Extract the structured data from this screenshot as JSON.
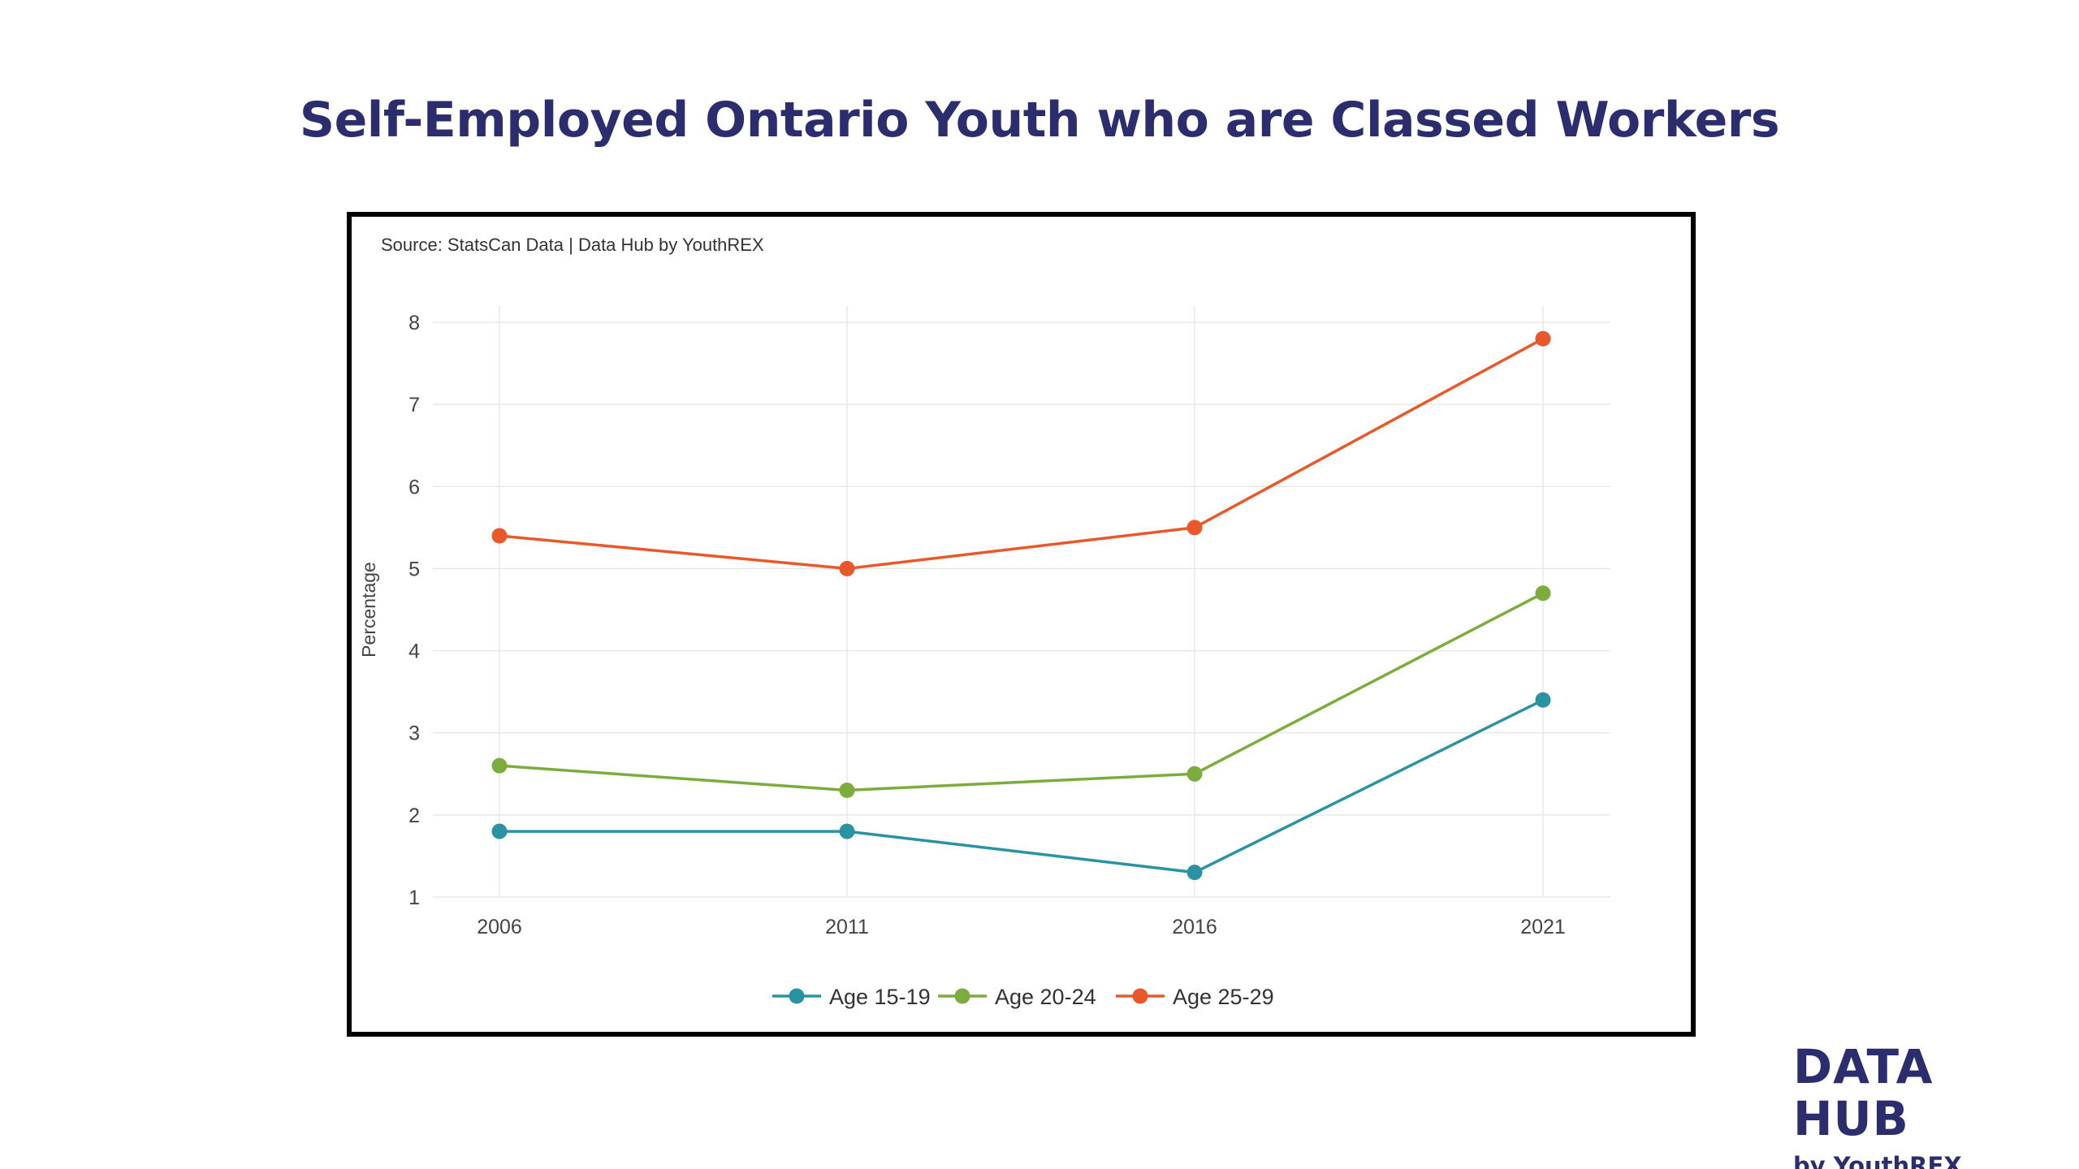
{
  "page": {
    "title": "Self-Employed Ontario Youth who are Classed Workers",
    "source_note": "Source: StatsCan Data | Data Hub by YouthREX"
  },
  "brand": {
    "name": "DATA HUB",
    "tagline": "by YouthREX"
  },
  "colors": {
    "title": "#2b2d6e",
    "frame": "#000000",
    "grid": "#e8e8e8"
  },
  "chart_data": {
    "type": "line",
    "title": "",
    "xlabel": "",
    "ylabel": "Percentage",
    "x": [
      "2006",
      "2011",
      "2016",
      "2021"
    ],
    "ylim": [
      1,
      8
    ],
    "yticks": [
      1,
      2,
      3,
      4,
      5,
      6,
      7,
      8
    ],
    "grid": true,
    "legend_position": "bottom",
    "series": [
      {
        "name": "Age 15-19",
        "color": "#2a93a3",
        "values": [
          1.8,
          1.8,
          1.3,
          3.4
        ]
      },
      {
        "name": "Age 20-24",
        "color": "#7dac3e",
        "values": [
          2.6,
          2.3,
          2.5,
          4.7
        ]
      },
      {
        "name": "Age 25-29",
        "color": "#e9582a",
        "values": [
          5.4,
          5.0,
          5.5,
          7.8
        ]
      }
    ]
  }
}
